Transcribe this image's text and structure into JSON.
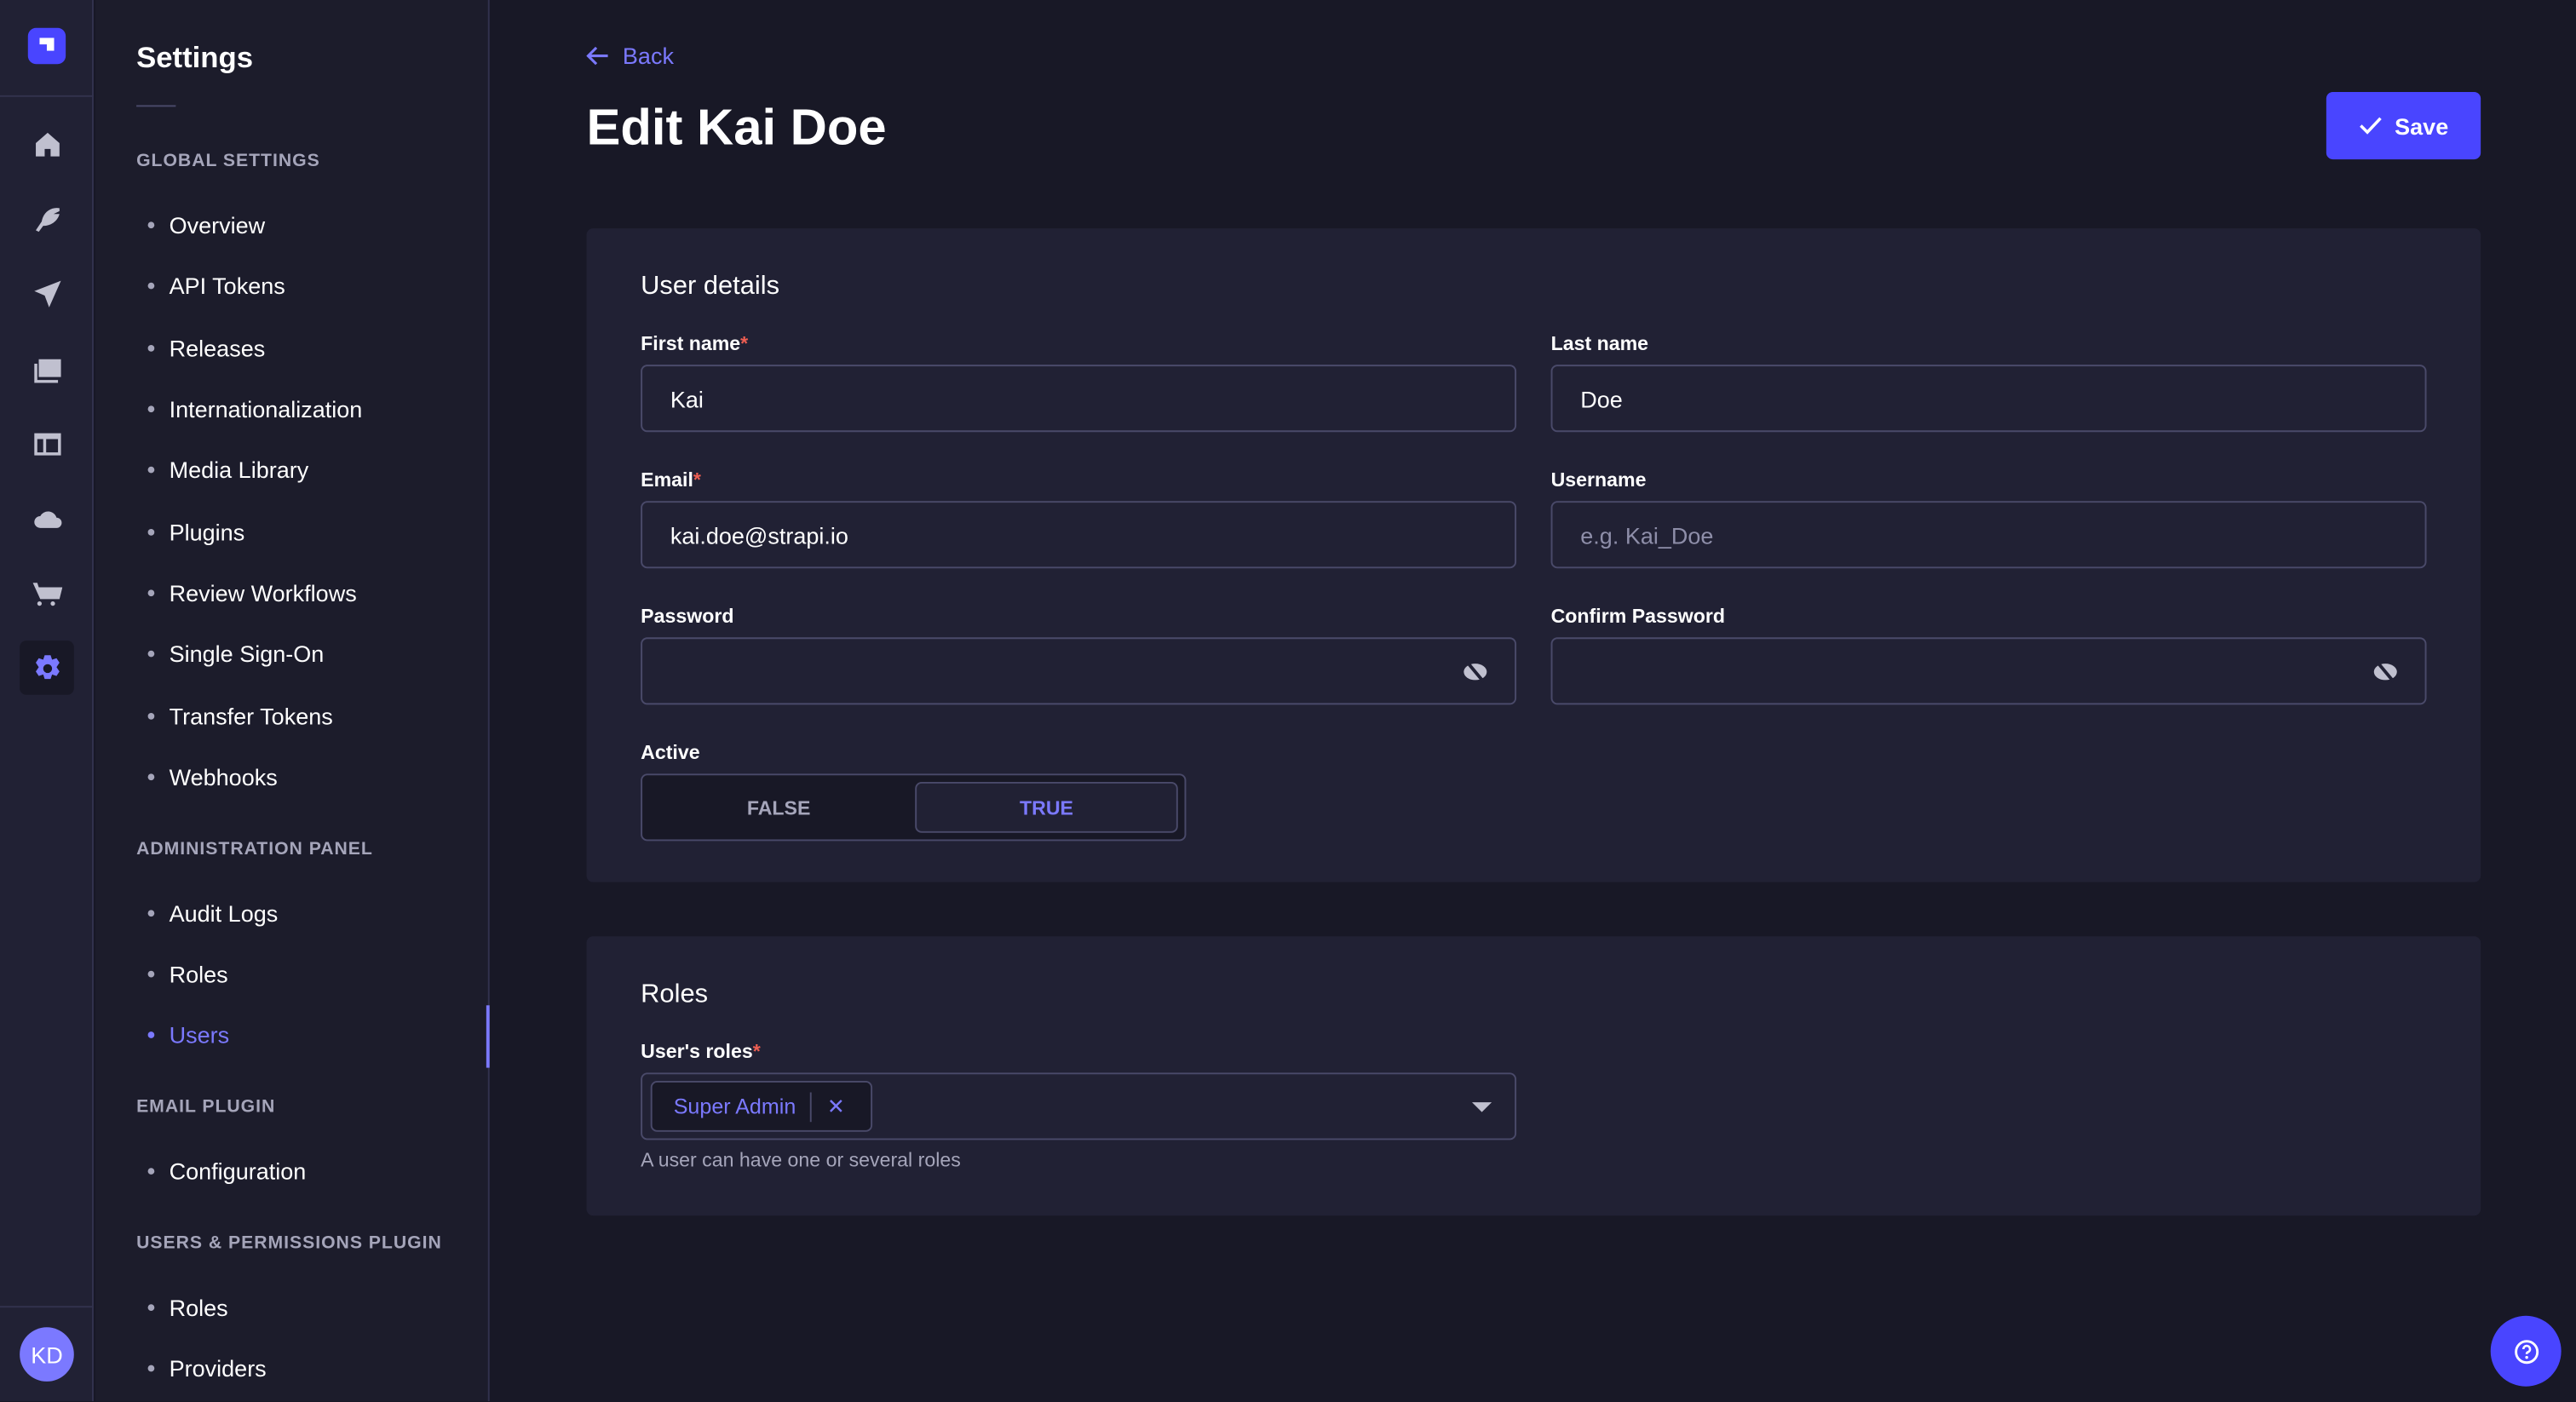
{
  "nav": {
    "icons": [
      "home-icon",
      "feather-icon",
      "paper-plane-icon",
      "images-icon",
      "layout-icon",
      "cloud-icon",
      "cart-icon",
      "gear-icon"
    ],
    "active": "gear-icon",
    "avatar_initials": "KD"
  },
  "settings": {
    "title": "Settings",
    "sections": [
      {
        "title": "GLOBAL SETTINGS",
        "items": [
          "Overview",
          "API Tokens",
          "Releases",
          "Internationalization",
          "Media Library",
          "Plugins",
          "Review Workflows",
          "Single Sign-On",
          "Transfer Tokens",
          "Webhooks"
        ]
      },
      {
        "title": "ADMINISTRATION PANEL",
        "items": [
          "Audit Logs",
          "Roles",
          "Users"
        ]
      },
      {
        "title": "EMAIL PLUGIN",
        "items": [
          "Configuration"
        ]
      },
      {
        "title": "USERS & PERMISSIONS PLUGIN",
        "items": [
          "Roles",
          "Providers"
        ]
      }
    ],
    "active_item": "Users"
  },
  "header": {
    "back": "Back",
    "title": "Edit Kai Doe",
    "save": "Save"
  },
  "details": {
    "title": "User details",
    "first_name": {
      "label": "First name",
      "value": "Kai"
    },
    "last_name": {
      "label": "Last name",
      "value": "Doe"
    },
    "email": {
      "label": "Email",
      "value": "kai.doe@strapi.io"
    },
    "username": {
      "label": "Username",
      "placeholder": "e.g. Kai_Doe"
    },
    "password": {
      "label": "Password",
      "value": ""
    },
    "confirm_password": {
      "label": "Confirm Password",
      "value": ""
    },
    "active": {
      "label": "Active",
      "false_label": "FALSE",
      "true_label": "TRUE",
      "value": true
    },
    "required_mark": "*"
  },
  "roles": {
    "title": "Roles",
    "label": "User's roles",
    "selected": [
      "Super Admin"
    ],
    "hint": "A user can have one or several roles"
  },
  "colors": {
    "accent": "#7b79ff",
    "primary": "#4945ff",
    "required": "#ee5e52"
  }
}
